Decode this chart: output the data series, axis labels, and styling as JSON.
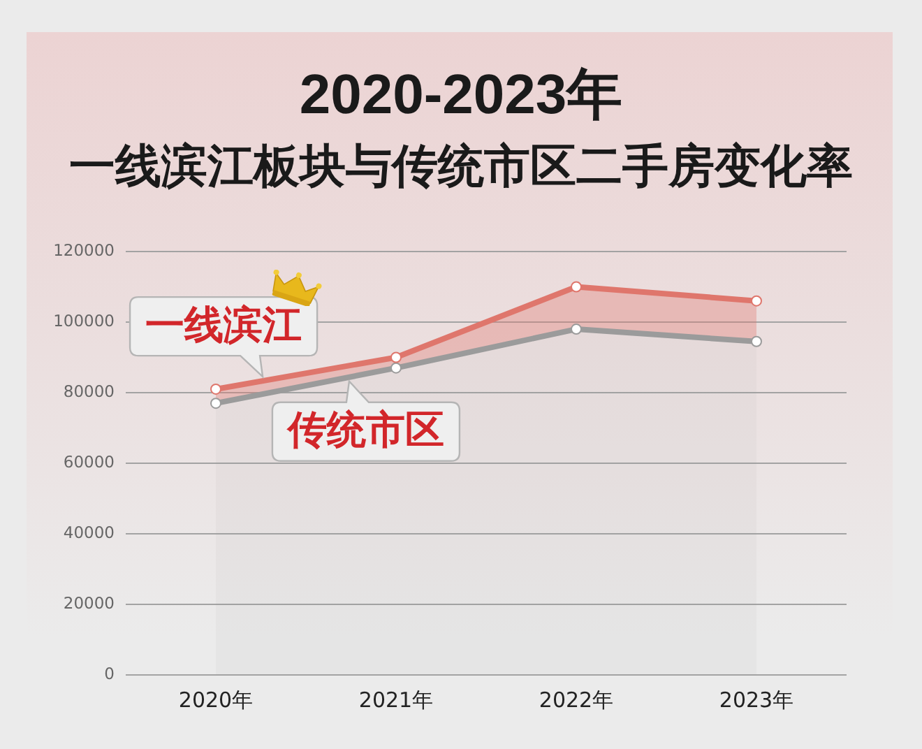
{
  "chart_data": {
    "type": "area",
    "title": "2020-2023年",
    "subtitle": "一线滨江板块与传统市区二手房变化率",
    "categories": [
      "2020年",
      "2021年",
      "2022年",
      "2023年"
    ],
    "series": [
      {
        "name": "一线滨江",
        "color": "#df766c",
        "values": [
          81000,
          90000,
          110000,
          106000
        ]
      },
      {
        "name": "传统市区",
        "color": "#9b9b9b",
        "values": [
          77000,
          87000,
          98000,
          94500
        ]
      }
    ],
    "ylim": [
      0,
      120000
    ],
    "yticks": [
      0,
      20000,
      40000,
      60000,
      80000,
      100000,
      120000
    ],
    "grid": "y",
    "marker": "circle",
    "line_style": "solid"
  }
}
